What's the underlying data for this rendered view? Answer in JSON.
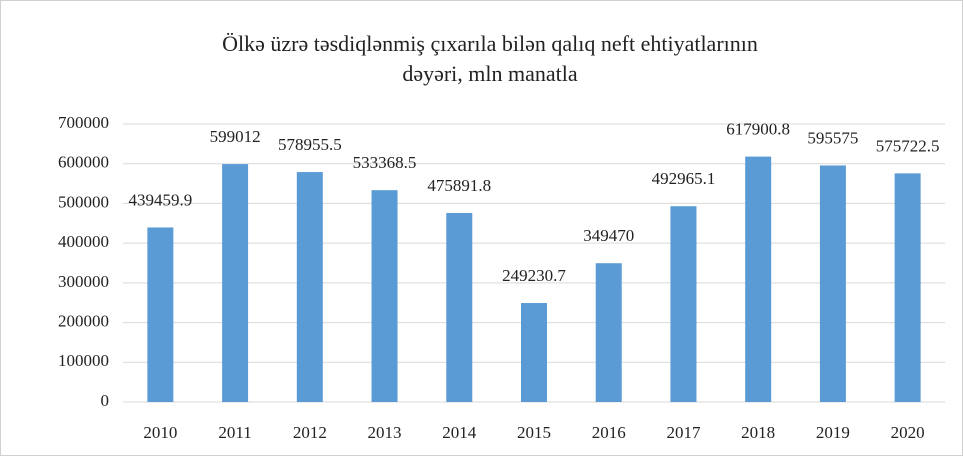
{
  "chart_data": {
    "type": "bar",
    "title": [
      "Ölkə üzrə təsdiqlənmiş çıxarıla bilən qalıq neft ehtiyatlarının",
      "dəyəri, mln manatla"
    ],
    "categories": [
      "2010",
      "2011",
      "2012",
      "2013",
      "2014",
      "2015",
      "2016",
      "2017",
      "2018",
      "2019",
      "2020"
    ],
    "values": [
      439459.9,
      599012,
      578955.5,
      533368.5,
      475891.8,
      249230.7,
      349470,
      492965.1,
      617900.8,
      595575,
      575722.5
    ],
    "color": "#5b9bd5",
    "ylim": [
      0,
      700000
    ],
    "yticks": [
      0,
      100000,
      200000,
      300000,
      400000,
      500000,
      600000,
      700000
    ],
    "grid": true
  }
}
